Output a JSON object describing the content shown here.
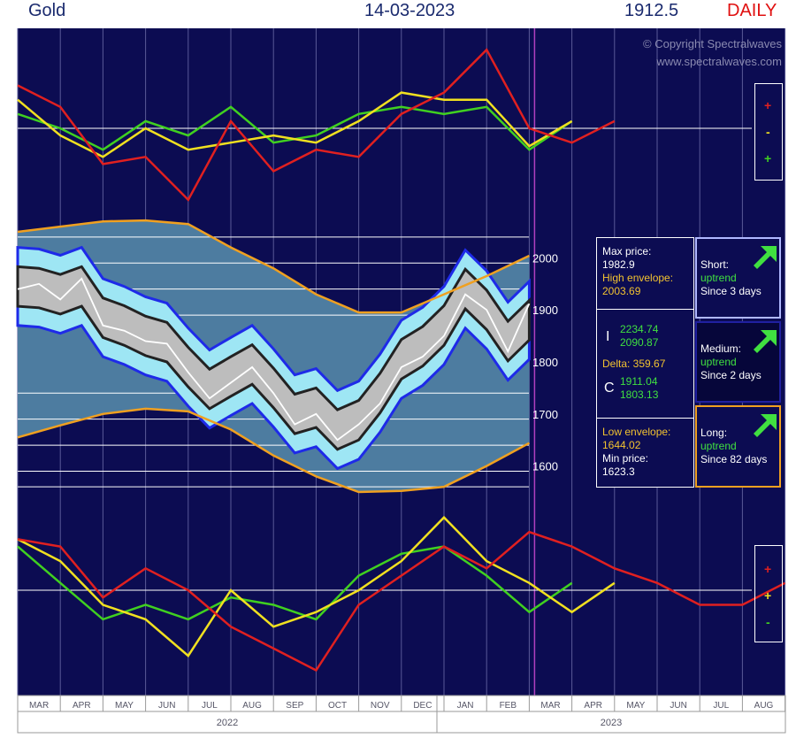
{
  "header": {
    "symbol": "Gold",
    "date": "14-03-2023",
    "price": "1912.5",
    "timeframe": "DAILY"
  },
  "copyright": {
    "line1": "© Copyright Spectralwaves",
    "line2": "www.spectralwaves.com"
  },
  "colors": {
    "background": "#0c0c52",
    "red": "#e02020",
    "yellow": "#f0e020",
    "green": "#40d020",
    "envelope": "#f0a020",
    "channel_light": "#9ee6f4",
    "channel_edge": "#1e2ae8",
    "band_gray": "#bdbdbd",
    "band_area": "#4d7ca0",
    "price_line": "#ffffff",
    "today_line": "#b040c0"
  },
  "legend_top": {
    "items": [
      "+",
      "-",
      "+"
    ]
  },
  "legend_bottom": {
    "items": [
      "+",
      "+",
      "-"
    ]
  },
  "stats": {
    "max_price_label": "Max price:",
    "max_price": "1982.9",
    "high_env_label": "High envelope:",
    "high_env": "2003.69",
    "i_label": "I",
    "i_val1": "2234.74",
    "i_val2": "2090.87",
    "delta": "Delta: 359.67",
    "c_label": "C",
    "c_val1": "1911.04",
    "c_val2": "1803.13",
    "low_env_label": "Low envelope:",
    "low_env": "1644.02",
    "min_price_label": "Min price:",
    "min_price": "1623.3"
  },
  "trends": [
    {
      "term": "Short:",
      "status": "uptrend",
      "since": "Since 3 days"
    },
    {
      "term": "Medium:",
      "status": "uptrend",
      "since": "Since 2 days"
    },
    {
      "term": "Long:",
      "status": "uptrend",
      "since": "Since 82 days"
    }
  ],
  "chart_data": {
    "type": "line",
    "title": "Gold",
    "y_axis_ticks": [
      "2000",
      "1900",
      "1800",
      "1700",
      "1600"
    ],
    "ylim": [
      1550,
      2050
    ],
    "x_axis_months": [
      "MAR",
      "APR",
      "MAY",
      "JUN",
      "JUL",
      "AUG",
      "SEP",
      "OCT",
      "NOV",
      "DEC",
      "JAN",
      "FEB",
      "MAR",
      "APR",
      "MAY",
      "JUN",
      "JUL",
      "AUG",
      "SEP"
    ],
    "years": [
      "2022",
      "2023"
    ],
    "current_date": "14-03-2023",
    "price_path": {
      "x": [
        0,
        0.5,
        1,
        1.5,
        2,
        2.5,
        3,
        3.5,
        4,
        4.5,
        5,
        5.5,
        6,
        6.5,
        7,
        7.5,
        8,
        8.5,
        9,
        9.5,
        10,
        10.5,
        11,
        11.5,
        12
      ],
      "y": [
        1940,
        1950,
        1920,
        1960,
        1870,
        1860,
        1840,
        1835,
        1780,
        1730,
        1760,
        1790,
        1740,
        1680,
        1700,
        1650,
        1680,
        1720,
        1790,
        1810,
        1850,
        1930,
        1900,
        1820,
        1912
      ]
    },
    "envelope_high": {
      "x": [
        0,
        1,
        2,
        3,
        4,
        5,
        6,
        7,
        8,
        9,
        10,
        11,
        12
      ],
      "y": [
        2050,
        2060,
        2070,
        2072,
        2065,
        2020,
        1980,
        1930,
        1895,
        1895,
        1930,
        1965,
        2004
      ]
    },
    "envelope_low": {
      "x": [
        0,
        1,
        2,
        3,
        4,
        5,
        6,
        7,
        8,
        9,
        10,
        11,
        12
      ],
      "y": [
        1655,
        1678,
        1700,
        1710,
        1705,
        1670,
        1620,
        1580,
        1550,
        1552,
        1560,
        1600,
        1644
      ]
    },
    "channel_center": {
      "x": [
        0,
        0.5,
        1,
        1.5,
        2,
        2.5,
        3,
        3.5,
        4,
        4.5,
        5,
        5.5,
        6,
        6.5,
        7,
        7.5,
        8,
        8.5,
        9,
        9.5,
        10,
        10.5,
        11,
        11.5,
        12
      ],
      "y": [
        1945,
        1942,
        1930,
        1945,
        1885,
        1870,
        1850,
        1838,
        1790,
        1748,
        1772,
        1795,
        1750,
        1700,
        1712,
        1670,
        1688,
        1740,
        1805,
        1830,
        1870,
        1940,
        1900,
        1840,
        1880
      ]
    },
    "oscillator_top": {
      "x": [
        0,
        1,
        2,
        3,
        4,
        5,
        6,
        7,
        8,
        9,
        10,
        11,
        12,
        13,
        14
      ],
      "red": [
        60,
        30,
        -50,
        -40,
        -100,
        10,
        -60,
        -30,
        -40,
        20,
        50,
        110,
        0,
        -20,
        10
      ],
      "yellow": [
        40,
        -10,
        -40,
        0,
        -30,
        -20,
        -10,
        -20,
        10,
        50,
        40,
        40,
        -25,
        10,
        null
      ],
      "green": [
        20,
        0,
        -30,
        10,
        -10,
        30,
        -20,
        -10,
        20,
        30,
        20,
        30,
        -30,
        10,
        null
      ]
    },
    "oscillator_bottom": {
      "x": [
        0,
        1,
        2,
        3,
        4,
        5,
        6,
        7,
        8,
        9,
        10,
        11,
        12,
        13,
        14,
        15,
        16,
        17,
        18
      ],
      "red": [
        70,
        60,
        -10,
        30,
        0,
        -50,
        -80,
        -110,
        -20,
        20,
        60,
        30,
        80,
        60,
        30,
        10,
        -20,
        -20,
        10
      ],
      "yellow": [
        70,
        40,
        -20,
        -40,
        -90,
        0,
        -50,
        -30,
        0,
        40,
        100,
        40,
        10,
        -30,
        10,
        null,
        null,
        null,
        null
      ],
      "green": [
        60,
        10,
        -40,
        -20,
        -40,
        -10,
        -20,
        -40,
        20,
        50,
        60,
        20,
        -30,
        10,
        null,
        null,
        null,
        null,
        null
      ]
    }
  }
}
